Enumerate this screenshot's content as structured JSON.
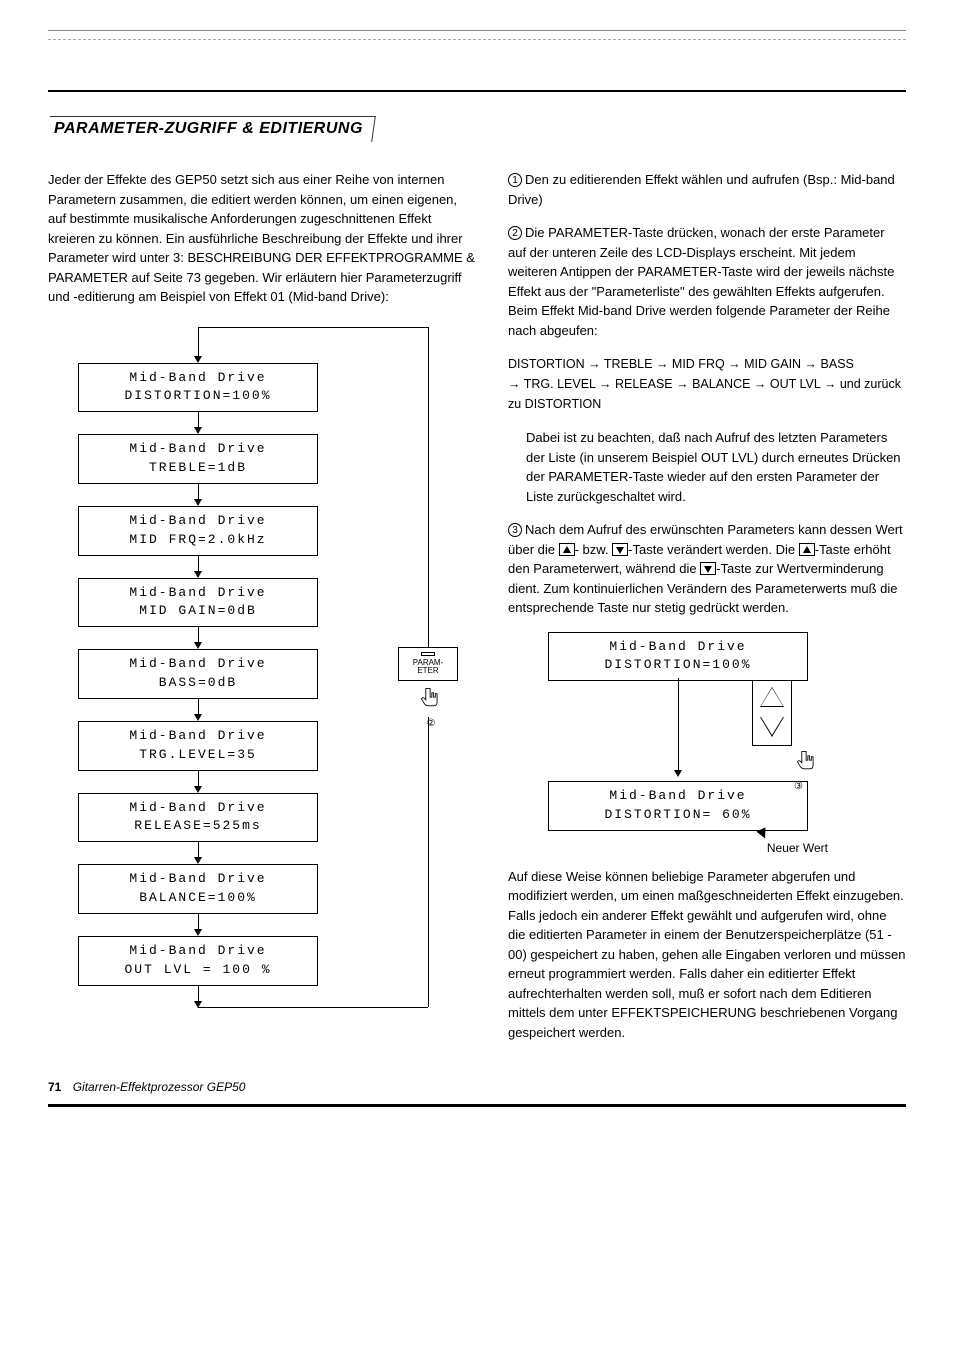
{
  "heading": "PARAMETER-ZUGRIFF & EDITIERUNG",
  "intro": "Jeder der Effekte des GEP50 setzt sich aus einer Reihe von internen Parametern zusammen, die editiert werden können, um einen eigenen, auf bestimmte musikalische Anforderungen zugeschnittenen Effekt kreieren zu können. Ein ausführliche Beschreibung der Effekte und ihrer Parameter wird unter 3: BESCHREIBUNG DER EFFEKTPROGRAMME & PARAMETER auf Seite 73 gegeben. Wir erläutern hier Parameterzugriff und -editierung am Beispiel von Effekt 01 (Mid-band Drive):",
  "flow": [
    {
      "l1": "Mid-Band Drive",
      "l2": "DISTORTION=100%"
    },
    {
      "l1": "Mid-Band Drive",
      "l2": "TREBLE=1dB"
    },
    {
      "l1": "Mid-Band Drive",
      "l2": "MID FRQ=2.0kHz"
    },
    {
      "l1": "Mid-Band Drive",
      "l2": "MID GAIN=0dB"
    },
    {
      "l1": "Mid-Band Drive",
      "l2": "BASS=0dB"
    },
    {
      "l1": "Mid-Band Drive",
      "l2": "TRG.LEVEL=35"
    },
    {
      "l1": "Mid-Band Drive",
      "l2": "RELEASE=525ms"
    },
    {
      "l1": "Mid-Band Drive",
      "l2": "BALANCE=100%"
    },
    {
      "l1": "Mid-Band Drive",
      "l2": "OUT LVL = 100 %"
    }
  ],
  "side_button_label": "PARAM-\nETER",
  "side_button_marker": "②",
  "steps": {
    "s1": "Den zu editierenden Effekt wählen und aufrufen (Bsp.: Mid-band Drive)",
    "s2": "Die PARAMETER-Taste drücken, wonach der erste Parameter auf der unteren Zeile des LCD-Displays erscheint. Mit jedem weiteren Antippen der PARAMETER-Taste wird der jeweils nächste Effekt aus der \"Parameterliste\" des gewählten Effekts aufgerufen. Beim Effekt Mid-band Drive werden folgende Parameter der Reihe nach abgeufen:",
    "s3_a": "Nach dem Aufruf des erwünschten Parameters kann dessen Wert über die ",
    "s3_b": "- bzw. ",
    "s3_c": "-Taste verändert werden. Die ",
    "s3_d": "-Taste erhöht den Parameterwert, während die ",
    "s3_e": "-Taste zur Wertverminderung dient. Zum kontinuierlichen Verändern des Parameterwerts muß die entsprechende Taste nur stetig gedrückt werden."
  },
  "param_chain_l1": "DISTORTION → TREBLE → MID FRQ → MID GAIN → BASS",
  "param_chain_l2": "→ TRG. LEVEL → RELEASE → BALANCE → OUT LVL → und zurück zu DISTORTION",
  "note": "Dabei ist zu beachten, daß nach Aufruf des letzten Parameters der Liste (in unserem Beispiel OUT LVL) durch erneutes Drücken der PARAMETER-Taste wieder auf den ersten Parameter der Liste zurückgeschaltet wird.",
  "example2": {
    "box1_l1": "Mid-Band Drive",
    "box1_l2": "DISTORTION=100%",
    "box2_l1": "Mid-Band Drive",
    "box2_l2": "DISTORTION= 60%",
    "marker": "③",
    "new_label": "Neuer Wert"
  },
  "closing": "Auf diese Weise können beliebige Parameter abgerufen und modifiziert werden, um einen maßgeschneiderten Effekt einzugeben. Falls jedoch ein anderer Effekt gewählt und aufgerufen wird, ohne die editierten Parameter in einem der Benutzerspeicherplätze (51 - 00) gespeichert zu haben, gehen alle Eingaben verloren und müssen erneut programmiert werden. Falls daher ein editierter Effekt aufrechterhalten werden soll, muß er sofort nach dem Editieren mittels dem unter EFFEKTSPEICHERUNG beschriebenen Vorgang gespeichert werden.",
  "footer": {
    "page": "71",
    "title": "Gitarren-Effektprozessor GEP50"
  }
}
